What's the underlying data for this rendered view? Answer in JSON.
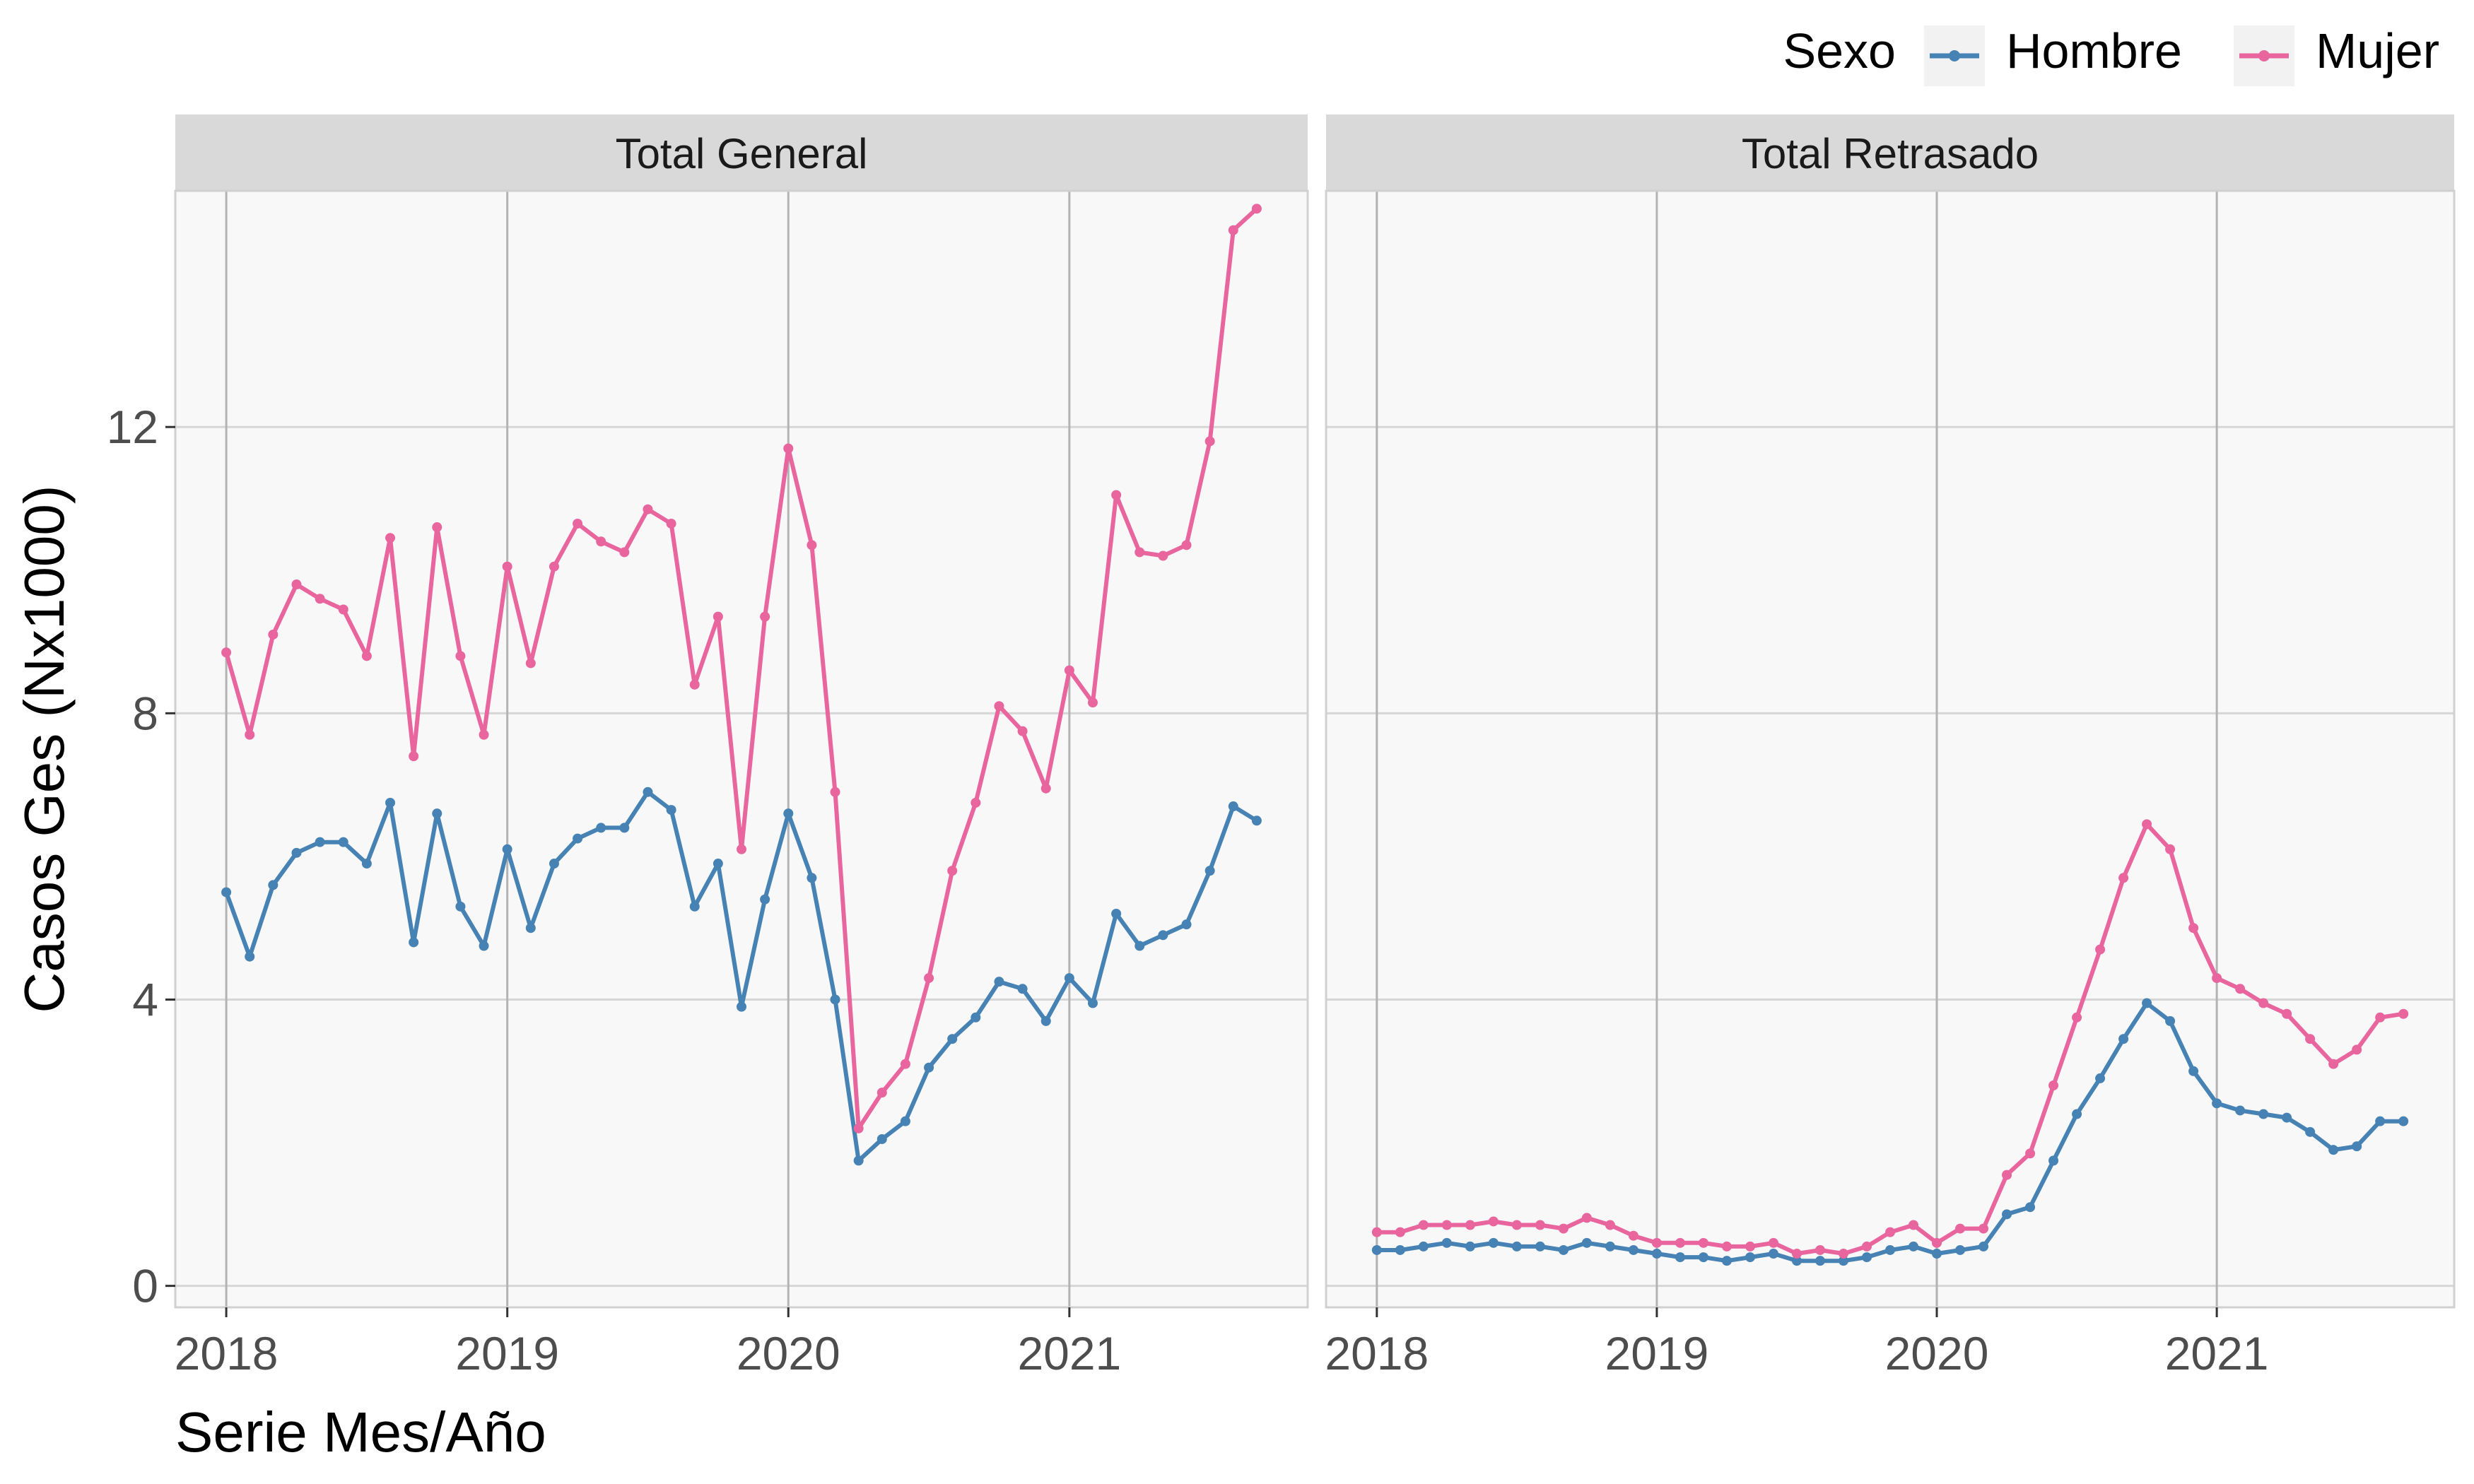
{
  "chart_data": {
    "type": "line",
    "xlabel": "Serie Mes/Año",
    "ylabel": "Casos Ges (Nx1000)",
    "x_ticks": [
      "2018",
      "2019",
      "2020",
      "2021"
    ],
    "y_ticks": [
      "0",
      "4",
      "8",
      "12"
    ],
    "ylim": [
      -0.3,
      15.3
    ],
    "grid": true,
    "legend": {
      "title": "Sexo",
      "position": "top-right"
    },
    "x": [
      "2018-01",
      "2018-02",
      "2018-03",
      "2018-04",
      "2018-05",
      "2018-06",
      "2018-07",
      "2018-08",
      "2018-09",
      "2018-10",
      "2018-11",
      "2018-12",
      "2019-01",
      "2019-02",
      "2019-03",
      "2019-04",
      "2019-05",
      "2019-06",
      "2019-07",
      "2019-08",
      "2019-09",
      "2019-10",
      "2019-11",
      "2019-12",
      "2020-01",
      "2020-02",
      "2020-03",
      "2020-04",
      "2020-05",
      "2020-06",
      "2020-07",
      "2020-08",
      "2020-09",
      "2020-10",
      "2020-11",
      "2020-12",
      "2021-01",
      "2021-02",
      "2021-03",
      "2021-04",
      "2021-05",
      "2021-06",
      "2021-07",
      "2021-08",
      "2021-09"
    ],
    "panels": [
      {
        "title": "Total General",
        "series": [
          {
            "name": "Hombre",
            "color": "#4682b4",
            "values": [
              5.5,
              4.6,
              5.6,
              6.05,
              6.2,
              6.2,
              5.9,
              6.75,
              4.8,
              6.6,
              5.3,
              4.75,
              6.1,
              5.0,
              5.9,
              6.25,
              6.4,
              6.4,
              6.9,
              6.65,
              5.3,
              5.9,
              3.9,
              5.4,
              6.6,
              5.7,
              4.0,
              1.75,
              2.05,
              2.3,
              3.05,
              3.45,
              3.75,
              4.25,
              4.15,
              3.7,
              4.3,
              3.95,
              5.2,
              4.75,
              4.9,
              5.05,
              5.8,
              6.7,
              6.5
            ]
          },
          {
            "name": "Mujer",
            "color": "#e8659e",
            "values": [
              8.85,
              7.7,
              9.1,
              9.8,
              9.6,
              9.45,
              8.8,
              10.45,
              7.4,
              10.6,
              8.8,
              7.7,
              10.05,
              8.7,
              10.05,
              10.65,
              10.4,
              10.25,
              10.85,
              10.65,
              8.4,
              9.35,
              6.1,
              9.35,
              11.7,
              10.35,
              6.9,
              2.2,
              2.7,
              3.1,
              4.3,
              5.8,
              6.75,
              8.1,
              7.75,
              6.95,
              8.6,
              8.15,
              11.05,
              10.25,
              10.2,
              10.35,
              11.8,
              14.75,
              15.05
            ]
          }
        ]
      },
      {
        "title": "Total Retrasado",
        "series": [
          {
            "name": "Hombre",
            "color": "#4682b4",
            "values": [
              0.5,
              0.5,
              0.55,
              0.6,
              0.55,
              0.6,
              0.55,
              0.55,
              0.5,
              0.6,
              0.55,
              0.5,
              0.45,
              0.4,
              0.4,
              0.35,
              0.4,
              0.45,
              0.35,
              0.35,
              0.35,
              0.4,
              0.5,
              0.55,
              0.45,
              0.5,
              0.55,
              1.0,
              1.1,
              1.75,
              2.4,
              2.9,
              3.45,
              3.95,
              3.7,
              3.0,
              2.55,
              2.45,
              2.4,
              2.35,
              2.15,
              1.9,
              1.95,
              2.3,
              2.3
            ]
          },
          {
            "name": "Mujer",
            "color": "#e8659e",
            "values": [
              0.75,
              0.75,
              0.85,
              0.85,
              0.85,
              0.9,
              0.85,
              0.85,
              0.8,
              0.95,
              0.85,
              0.7,
              0.6,
              0.6,
              0.6,
              0.55,
              0.55,
              0.6,
              0.45,
              0.5,
              0.45,
              0.55,
              0.75,
              0.85,
              0.6,
              0.8,
              0.8,
              1.55,
              1.85,
              2.8,
              3.75,
              4.7,
              5.7,
              6.45,
              6.1,
              5.0,
              4.3,
              4.15,
              3.95,
              3.8,
              3.45,
              3.1,
              3.3,
              3.75,
              3.8
            ]
          }
        ]
      }
    ]
  }
}
